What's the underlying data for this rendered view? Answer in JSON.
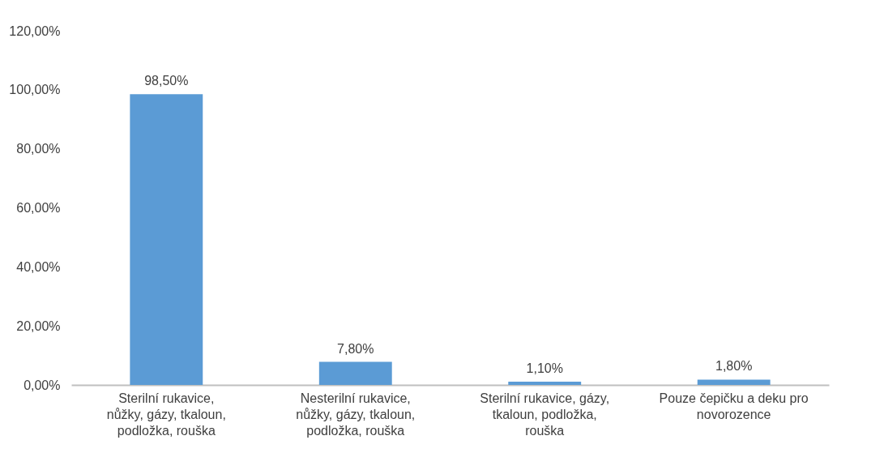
{
  "chart_data": {
    "type": "bar",
    "categories": [
      "Sterilní rukavice, nůžky, gázy, tkaloun, podložka, rouška",
      "Nesterilní rukavice, nůžky, gázy, tkaloun, podložka, rouška",
      "Sterilní rukavice, gázy, tkaloun, podložka, rouška",
      "Pouze čepičku a deku pro novorozence"
    ],
    "values": [
      98.5,
      7.8,
      1.1,
      1.8
    ],
    "value_labels": [
      "98,50%",
      "7,80%",
      "1,10%",
      "1,80%"
    ],
    "color": "#5b9bd5",
    "ylim": [
      0,
      120
    ],
    "yticks": [
      {
        "value": 0,
        "label": "0,00%"
      },
      {
        "value": 20,
        "label": "20,00%"
      },
      {
        "value": 40,
        "label": "40,00%"
      },
      {
        "value": 60,
        "label": "60,00%"
      },
      {
        "value": 80,
        "label": "80,00%"
      },
      {
        "value": 100,
        "label": "100,00%"
      },
      {
        "value": 120,
        "label": "120,00%"
      }
    ],
    "grid": false
  }
}
